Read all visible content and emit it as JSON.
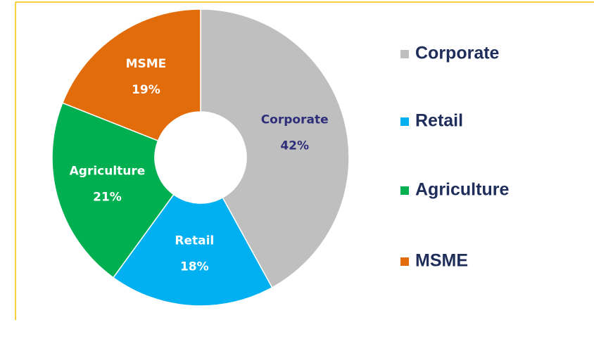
{
  "chart_data": {
    "type": "donut",
    "categories": [
      "Corporate",
      "Retail",
      "Agriculture",
      "MSME"
    ],
    "values": [
      42,
      18,
      21,
      19
    ],
    "value_labels": [
      "42%",
      "18%",
      "21%",
      "19%"
    ],
    "colors": [
      "#bfbfbf",
      "#00b0f0",
      "#00b050",
      "#e36c0a"
    ],
    "label_colors": [
      "#2e2e7a",
      "#ffffff",
      "#ffffff",
      "#ffffff"
    ],
    "legend": "right"
  }
}
